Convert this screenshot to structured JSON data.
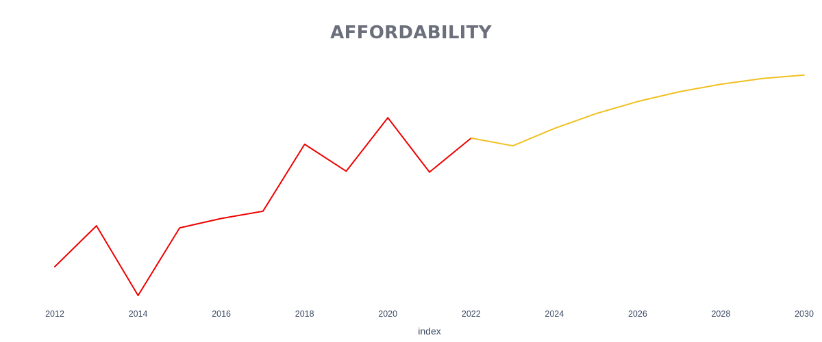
{
  "chart_data": {
    "type": "line",
    "title": "AFFORDABILITY",
    "xlabel": "index",
    "ylabel": "",
    "x_ticks": [
      "2012",
      "2014",
      "2016",
      "2018",
      "2020",
      "2022",
      "2024",
      "2026",
      "2028",
      "2030"
    ],
    "xlim": [
      2012,
      2030
    ],
    "ylim": [
      0,
      100
    ],
    "grid": false,
    "y_axis_visible": false,
    "series": [
      {
        "color": "#ee0000",
        "x": [
          2012,
          2013,
          2014,
          2015,
          2016,
          2017,
          2018,
          2019,
          2020,
          2021,
          2022
        ],
        "y": [
          12.6,
          30.5,
          0,
          29.6,
          33.7,
          36.9,
          66.2,
          54.4,
          77.8,
          54.0,
          68.9
        ]
      },
      {
        "color": "#f0c020",
        "x": [
          2022,
          2023,
          2024,
          2025,
          2026,
          2027,
          2028,
          2029,
          2030
        ],
        "y": [
          68.9,
          65.5,
          73.1,
          79.6,
          84.9,
          89.2,
          92.5,
          95.0,
          96.5
        ]
      }
    ]
  }
}
